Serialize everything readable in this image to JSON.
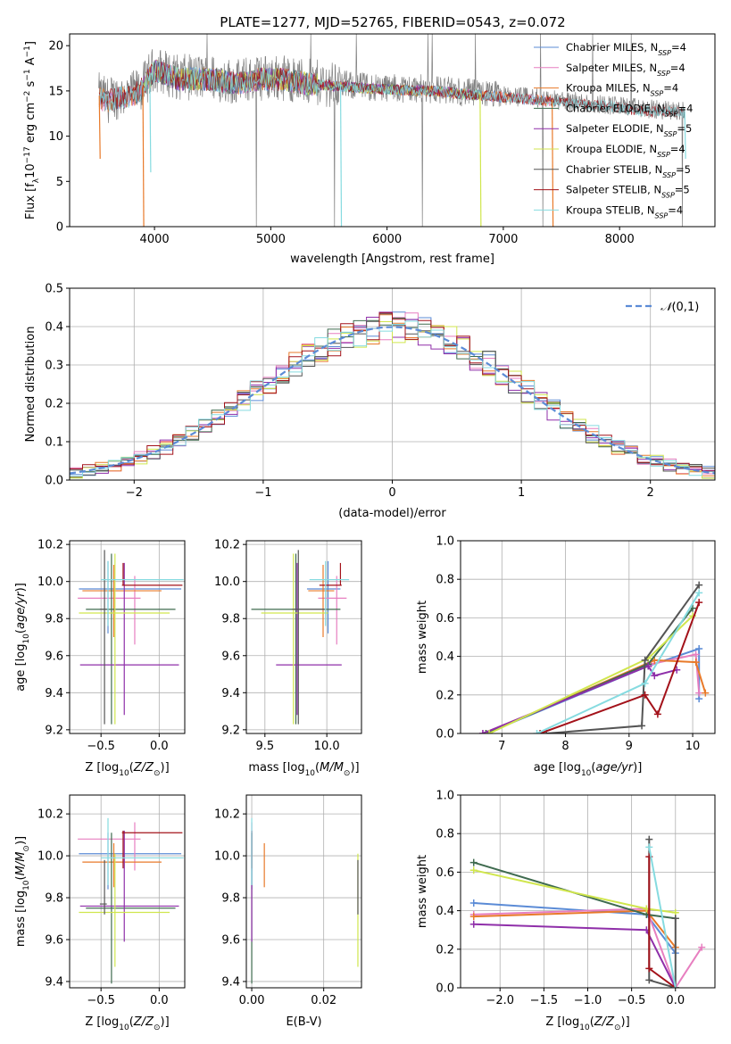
{
  "figure": {
    "title": "PLATE=1277, MJD=52765, FIBERID=0543, z=0.072"
  },
  "colors": {
    "Chabrier MILES": "#5b8bd6",
    "Salpeter MILES": "#e77fc0",
    "Kroupa MILES": "#e87a2a",
    "Chabrier ELODIE": "#3f6b4f",
    "Salpeter ELODIE": "#8f2fa9",
    "Kroupa ELODIE": "#d0e64d",
    "Chabrier STELIB": "#555555",
    "Salpeter STELIB": "#a3121a",
    "Kroupa STELIB": "#86dbe0",
    "data": "#808080",
    "normal": "#5b8bd6"
  },
  "chart_data": [
    {
      "id": "spectrum",
      "type": "line",
      "title": "PLATE=1277, MJD=52765, FIBERID=0543, z=0.072",
      "xlabel": "wavelength [Angstrom, rest frame]",
      "ylabel": "Flux [f_λ 10^-17 erg cm^-2 s^-1 A^-1]",
      "xlim": [
        3270,
        8820
      ],
      "ylim": [
        0,
        21.3
      ],
      "xticks": [
        4000,
        5000,
        6000,
        7000,
        8000
      ],
      "yticks": [
        0,
        5,
        10,
        15,
        20
      ],
      "grid": false,
      "legend_position": "top-right",
      "legend": [
        {
          "name": "Chabrier MILES",
          "nssp": "4"
        },
        {
          "name": "Salpeter MILES",
          "nssp": "4"
        },
        {
          "name": "Kroupa MILES",
          "nssp": "4"
        },
        {
          "name": "Chabrier ELODIE",
          "nssp": "4"
        },
        {
          "name": "Salpeter ELODIE",
          "nssp": "5"
        },
        {
          "name": "Kroupa ELODIE",
          "nssp": "4"
        },
        {
          "name": "Chabrier STELIB",
          "nssp": "5"
        },
        {
          "name": "Salpeter STELIB",
          "nssp": "5"
        },
        {
          "name": "Kroupa STELIB",
          "nssp": "4"
        }
      ],
      "data_trend": {
        "x": [
          3520,
          3600,
          3700,
          3800,
          3900,
          4000,
          4100,
          4200,
          4300,
          4500,
          4700,
          4900,
          5100,
          5300,
          5500,
          5800,
          6100,
          6400,
          6700,
          7000,
          7300,
          7600,
          7900,
          8200,
          8500
        ],
        "y": [
          14.5,
          14.0,
          14.5,
          14.5,
          15.5,
          17.5,
          17.0,
          16.5,
          16.5,
          16.5,
          16.0,
          16.5,
          16.5,
          16.0,
          15.8,
          15.5,
          15.3,
          15.2,
          14.8,
          14.5,
          14.2,
          13.8,
          13.5,
          13.0,
          12.8
        ]
      },
      "model_dropouts": [
        {
          "series": "Kroupa MILES",
          "x": 3525,
          "y": 7.5
        },
        {
          "series": "Kroupa MILES",
          "x": 3900,
          "y": 0
        },
        {
          "series": "Kroupa STELIB",
          "x": 3960,
          "y": 6.0
        },
        {
          "series": "Kroupa STELIB",
          "x": 5600,
          "y": 0
        },
        {
          "series": "Kroupa ELODIE",
          "x": 6800,
          "y": 0
        },
        {
          "series": "Kroupa MILES",
          "x": 7420,
          "y": 0
        },
        {
          "series": "Kroupa STELIB",
          "x": 8560,
          "y": 7.5
        }
      ]
    },
    {
      "id": "residuals",
      "type": "line",
      "xlabel": "(data-model)/error",
      "ylabel": "Normed distribution",
      "xlim": [
        -2.5,
        2.5
      ],
      "ylim": [
        0,
        0.5
      ],
      "xticks": [
        -2,
        -1,
        0,
        1,
        2
      ],
      "yticks": [
        0.0,
        0.1,
        0.2,
        0.3,
        0.4,
        0.5
      ],
      "grid": true,
      "legend_position": "top-right",
      "curve_label": "N(0,1)"
    },
    {
      "id": "age_vs_Z",
      "type": "scatter",
      "xlabel": "Z [log10(Z/Z⊙)]",
      "ylabel": "age [log10(age/yr)]",
      "xlim": [
        -0.77,
        0.22
      ],
      "ylim": [
        9.18,
        10.22
      ],
      "xticks": [
        -0.5,
        0.0
      ],
      "yticks": [
        9.2,
        9.4,
        9.6,
        9.8,
        10.0,
        10.2
      ],
      "grid": true,
      "points": [
        {
          "series": "Chabrier MILES",
          "x": -0.44,
          "y": 9.96,
          "xerr": [
            0.25,
            0.63
          ],
          "yerr": [
            0.24,
            0.15
          ]
        },
        {
          "series": "Salpeter MILES",
          "x": -0.21,
          "y": 9.91,
          "xerr": [
            0.49,
            0.05
          ],
          "yerr": [
            0.25,
            0.12
          ]
        },
        {
          "series": "Kroupa MILES",
          "x": -0.39,
          "y": 9.95,
          "xerr": [
            0.27,
            0.41
          ],
          "yerr": [
            0.25,
            0.14
          ]
        },
        {
          "series": "Chabrier ELODIE",
          "x": -0.41,
          "y": 9.85,
          "xerr": [
            0.22,
            0.55
          ],
          "yerr": [
            0.62,
            0.3
          ]
        },
        {
          "series": "Salpeter ELODIE",
          "x": -0.3,
          "y": 9.55,
          "xerr": [
            0.38,
            0.47
          ],
          "yerr": [
            0.27,
            0.55
          ]
        },
        {
          "series": "Kroupa ELODIE",
          "x": -0.38,
          "y": 9.83,
          "xerr": [
            0.31,
            0.47
          ],
          "yerr": [
            0.6,
            0.32
          ]
        },
        {
          "series": "Chabrier STELIB",
          "x": -0.47,
          "y": 9.85,
          "xerr": [
            0.04,
            0.02
          ],
          "yerr": [
            0.62,
            0.32
          ]
        },
        {
          "series": "Salpeter STELIB",
          "x": -0.31,
          "y": 9.98,
          "xerr": [
            0.01,
            0.51
          ],
          "yerr": [
            0.0,
            0.12
          ]
        },
        {
          "series": "Kroupa STELIB",
          "x": -0.44,
          "y": 10.01,
          "xerr": [
            0.06,
            0.65
          ],
          "yerr": [
            0.25,
            0.1
          ]
        }
      ]
    },
    {
      "id": "age_vs_mass",
      "type": "scatter",
      "xlabel": "mass [log10(M/M⊙)]",
      "ylabel": "",
      "xlim": [
        9.35,
        10.28
      ],
      "ylim": [
        9.18,
        10.22
      ],
      "xticks": [
        9.5,
        10.0
      ],
      "yticks": [
        9.2,
        9.4,
        9.6,
        9.8,
        10.0,
        10.2
      ],
      "grid": true,
      "points": [
        {
          "series": "Chabrier MILES",
          "x": 10.01,
          "y": 9.96,
          "xerr": [
            0.17,
            0.1
          ],
          "yerr": [
            0.24,
            0.15
          ]
        },
        {
          "series": "Salpeter MILES",
          "x": 10.08,
          "y": 9.91,
          "xerr": [
            0.15,
            0.08
          ],
          "yerr": [
            0.25,
            0.12
          ]
        },
        {
          "series": "Kroupa MILES",
          "x": 9.97,
          "y": 9.95,
          "xerr": [
            0.12,
            0.09
          ],
          "yerr": [
            0.25,
            0.14
          ]
        },
        {
          "series": "Chabrier ELODIE",
          "x": 9.75,
          "y": 9.85,
          "xerr": [
            0.36,
            0.36
          ],
          "yerr": [
            0.62,
            0.3
          ]
        },
        {
          "series": "Salpeter ELODIE",
          "x": 9.76,
          "y": 9.55,
          "xerr": [
            0.17,
            0.36
          ],
          "yerr": [
            0.27,
            0.55
          ]
        },
        {
          "series": "Kroupa ELODIE",
          "x": 9.73,
          "y": 9.83,
          "xerr": [
            0.26,
            0.28
          ],
          "yerr": [
            0.6,
            0.32
          ]
        },
        {
          "series": "Chabrier STELIB",
          "x": 9.77,
          "y": 9.85,
          "xerr": [
            0.05,
            0.21
          ],
          "yerr": [
            0.62,
            0.32
          ]
        },
        {
          "series": "Salpeter STELIB",
          "x": 10.11,
          "y": 9.98,
          "xerr": [
            0.17,
            0.01
          ],
          "yerr": [
            0.0,
            0.12
          ]
        },
        {
          "series": "Kroupa STELIB",
          "x": 9.99,
          "y": 10.01,
          "xerr": [
            0.13,
            0.19
          ],
          "yerr": [
            0.25,
            0.1
          ]
        }
      ]
    },
    {
      "id": "weight_vs_age",
      "type": "line",
      "xlabel": "age [log10(age/yr)]",
      "ylabel": "mass weight",
      "xlim": [
        6.35,
        10.35
      ],
      "ylim": [
        0,
        1.0
      ],
      "xticks": [
        7,
        8,
        9,
        10
      ],
      "yticks": [
        0.0,
        0.2,
        0.4,
        0.6,
        0.8,
        1.0
      ],
      "grid": true,
      "series": [
        {
          "name": "Chabrier MILES",
          "x": [
            6.75,
            9.3,
            10.1,
            10.1
          ],
          "y": [
            0.0,
            0.35,
            0.44,
            0.18
          ]
        },
        {
          "name": "Salpeter MILES",
          "x": [
            6.7,
            9.35,
            10.05,
            10.1
          ],
          "y": [
            0.0,
            0.36,
            0.41,
            0.21
          ]
        },
        {
          "name": "Kroupa MILES",
          "x": [
            6.75,
            9.4,
            10.05,
            10.2
          ],
          "y": [
            0.0,
            0.38,
            0.37,
            0.21
          ]
        },
        {
          "name": "Chabrier ELODIE",
          "x": [
            6.75,
            9.3,
            10.0
          ],
          "y": [
            0.0,
            0.36,
            0.65
          ]
        },
        {
          "name": "Salpeter ELODIE",
          "x": [
            6.7,
            9.3,
            9.4,
            9.75
          ],
          "y": [
            0.0,
            0.35,
            0.3,
            0.33
          ]
        },
        {
          "name": "Kroupa ELODIE",
          "x": [
            6.8,
            9.3,
            10.0
          ],
          "y": [
            0.0,
            0.39,
            0.61
          ]
        },
        {
          "name": "Chabrier STELIB",
          "x": [
            7.7,
            9.2,
            9.25,
            10.1
          ],
          "y": [
            0.0,
            0.04,
            0.38,
            0.77
          ]
        },
        {
          "name": "Salpeter STELIB",
          "x": [
            7.6,
            9.25,
            9.45,
            10.1
          ],
          "y": [
            0.0,
            0.2,
            0.1,
            0.68
          ]
        },
        {
          "name": "Kroupa STELIB",
          "x": [
            7.55,
            9.25,
            10.1
          ],
          "y": [
            0.0,
            0.26,
            0.73
          ]
        }
      ]
    },
    {
      "id": "mass_vs_Z",
      "type": "scatter",
      "xlabel": "Z [log10(Z/Z⊙)]",
      "ylabel": "mass [log10(M/M⊙)]",
      "xlim": [
        -0.77,
        0.22
      ],
      "ylim": [
        9.37,
        10.29
      ],
      "xticks": [
        -0.5,
        0.0
      ],
      "yticks": [
        9.4,
        9.6,
        9.8,
        10.0,
        10.2
      ],
      "grid": true,
      "points": [
        {
          "series": "Chabrier MILES",
          "x": -0.44,
          "y": 10.01,
          "xerr": [
            0.25,
            0.63
          ],
          "yerr": [
            0.17,
            0.1
          ]
        },
        {
          "series": "Salpeter MILES",
          "x": -0.21,
          "y": 10.08,
          "xerr": [
            0.49,
            0.05
          ],
          "yerr": [
            0.15,
            0.08
          ]
        },
        {
          "series": "Kroupa MILES",
          "x": -0.39,
          "y": 9.97,
          "xerr": [
            0.27,
            0.41
          ],
          "yerr": [
            0.12,
            0.09
          ]
        },
        {
          "series": "Chabrier ELODIE",
          "x": -0.41,
          "y": 9.75,
          "xerr": [
            0.22,
            0.55
          ],
          "yerr": [
            0.36,
            0.36
          ]
        },
        {
          "series": "Salpeter ELODIE",
          "x": -0.3,
          "y": 9.76,
          "xerr": [
            0.38,
            0.47
          ],
          "yerr": [
            0.17,
            0.36
          ]
        },
        {
          "series": "Kroupa ELODIE",
          "x": -0.38,
          "y": 9.73,
          "xerr": [
            0.31,
            0.47
          ],
          "yerr": [
            0.26,
            0.28
          ]
        },
        {
          "series": "Chabrier STELIB",
          "x": -0.47,
          "y": 9.77,
          "xerr": [
            0.04,
            0.02
          ],
          "yerr": [
            0.05,
            0.21
          ]
        },
        {
          "series": "Salpeter STELIB",
          "x": -0.31,
          "y": 10.11,
          "xerr": [
            0.01,
            0.51
          ],
          "yerr": [
            0.17,
            0.01
          ]
        },
        {
          "series": "Kroupa STELIB",
          "x": -0.44,
          "y": 9.99,
          "xerr": [
            0.06,
            0.65
          ],
          "yerr": [
            0.13,
            0.19
          ]
        }
      ]
    },
    {
      "id": "mass_vs_EBV",
      "type": "scatter",
      "xlabel": "E(B-V)",
      "ylabel": "",
      "xlim": [
        -0.0015,
        0.0305
      ],
      "ylim": [
        9.37,
        10.29
      ],
      "xticks": [
        0.0,
        0.02
      ],
      "yticks": [
        9.4,
        9.6,
        9.8,
        10.0,
        10.2
      ],
      "grid": true,
      "points": [
        {
          "series": "Chabrier MILES",
          "x": 0.0,
          "y": 10.01,
          "yerr": [
            0.17,
            0.1
          ]
        },
        {
          "series": "Salpeter MILES",
          "x": 0.0,
          "y": 10.08,
          "yerr": [
            0.15,
            0.08
          ]
        },
        {
          "series": "Kroupa MILES",
          "x": 0.0035,
          "y": 9.97,
          "yerr": [
            0.12,
            0.09
          ]
        },
        {
          "series": "Chabrier ELODIE",
          "x": 0.0,
          "y": 9.75,
          "yerr": [
            0.36,
            0.36
          ]
        },
        {
          "series": "Salpeter ELODIE",
          "x": 0.0,
          "y": 9.76,
          "yerr": [
            0.17,
            0.36
          ]
        },
        {
          "series": "Kroupa ELODIE",
          "x": 0.0295,
          "y": 9.73,
          "yerr": [
            0.26,
            0.28
          ]
        },
        {
          "series": "Chabrier STELIB",
          "x": 0.0295,
          "y": 9.77,
          "yerr": [
            0.05,
            0.21
          ]
        },
        {
          "series": "Salpeter STELIB",
          "x": 0.0,
          "y": 10.11,
          "yerr": [
            0.17,
            0.01
          ]
        },
        {
          "series": "Kroupa STELIB",
          "x": 0.0,
          "y": 9.99,
          "yerr": [
            0.13,
            0.19
          ]
        }
      ]
    },
    {
      "id": "weight_vs_Z",
      "type": "line",
      "xlabel": "Z [log10(Z/Z⊙)]",
      "ylabel": "mass weight",
      "xlim": [
        -2.45,
        0.45
      ],
      "ylim": [
        0,
        1.0
      ],
      "xticks": [
        -2.0,
        -1.5,
        -1.0,
        -0.5,
        0.0
      ],
      "yticks": [
        0.0,
        0.2,
        0.4,
        0.6,
        0.8,
        1.0
      ],
      "grid": true,
      "series": [
        {
          "name": "Chabrier MILES",
          "x": [
            -2.3,
            -0.33,
            0.0
          ],
          "y": [
            0.44,
            0.38,
            0.18
          ]
        },
        {
          "name": "Salpeter MILES",
          "x": [
            -2.3,
            -0.33,
            0.0,
            0.3
          ],
          "y": [
            0.38,
            0.41,
            0.0,
            0.21
          ]
        },
        {
          "name": "Kroupa MILES",
          "x": [
            -2.3,
            -0.33,
            0.0
          ],
          "y": [
            0.37,
            0.4,
            0.21
          ]
        },
        {
          "name": "Chabrier ELODIE",
          "x": [
            -2.3,
            -0.33,
            0.0
          ],
          "y": [
            0.65,
            0.38,
            0.36
          ]
        },
        {
          "name": "Salpeter ELODIE",
          "x": [
            -2.3,
            -0.33,
            0.0
          ],
          "y": [
            0.33,
            0.3,
            0.0
          ]
        },
        {
          "name": "Kroupa ELODIE",
          "x": [
            -2.3,
            -0.33,
            0.0
          ],
          "y": [
            0.61,
            0.41,
            0.39
          ]
        },
        {
          "name": "Chabrier STELIB",
          "x": [
            -0.3,
            -0.3,
            0.0,
            0.0
          ],
          "y": [
            0.77,
            0.04,
            0.0,
            0.36
          ]
        },
        {
          "name": "Salpeter STELIB",
          "x": [
            -0.3,
            -0.3,
            0.0
          ],
          "y": [
            0.68,
            0.1,
            0.0
          ]
        },
        {
          "name": "Kroupa STELIB",
          "x": [
            -0.3,
            0.0
          ],
          "y": [
            0.73,
            0.0
          ]
        }
      ]
    }
  ]
}
